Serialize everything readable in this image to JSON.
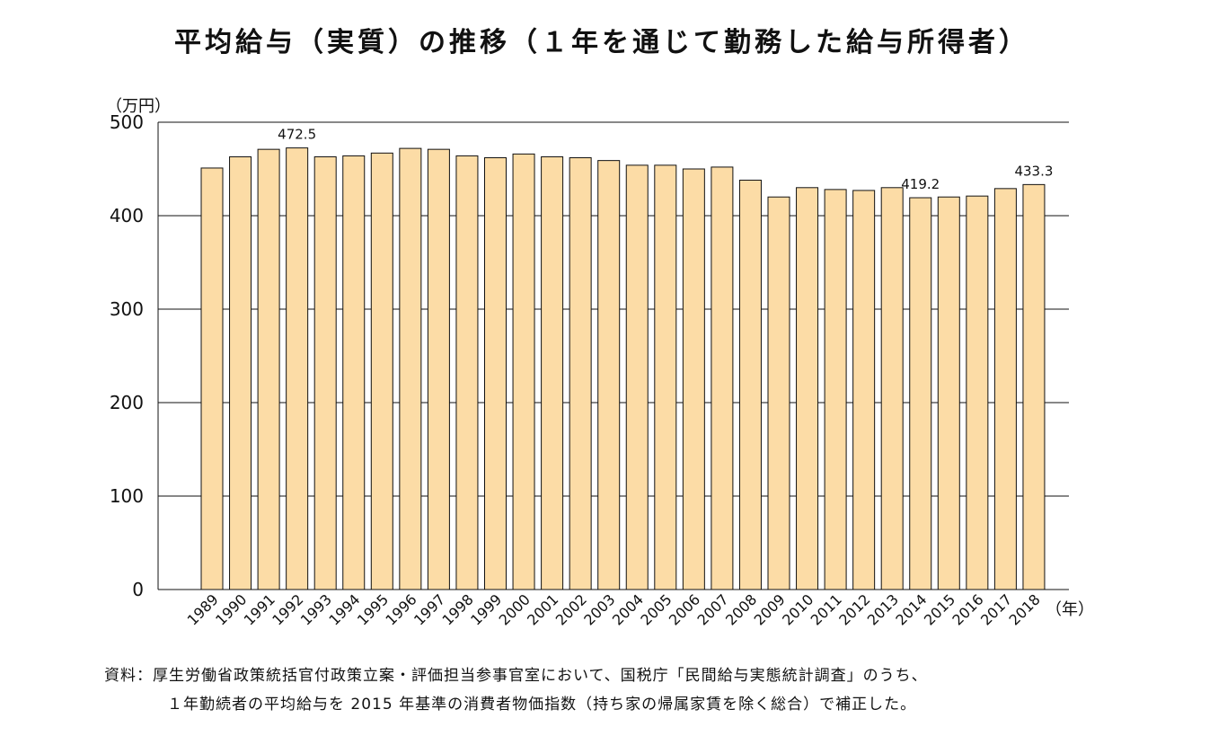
{
  "title": "平均給与（実質）の推移（１年を通じて勤務した給与所得者）",
  "unit_label": "（万円）",
  "x_unit_label": "（年）",
  "source_line1": "資料：厚生労働省政策統括官付政策立案・評価担当参事官室において、国税庁「民間給与実態統計調査」のうち、",
  "source_line2": "１年勤続者の平均給与を 2015 年基準の消費者物価指数（持ち家の帰属家賃を除く総合）で補正した。",
  "colors": {
    "bar_fill": "#fcdca6",
    "bar_stroke": "#111111",
    "grid": "#111111"
  },
  "chart_data": {
    "type": "bar",
    "title": "平均給与（実質）の推移（１年を通じて勤務した給与所得者）",
    "xlabel": "（年）",
    "ylabel": "（万円）",
    "ylim": [
      0,
      500
    ],
    "yticks": [
      0,
      100,
      200,
      300,
      400,
      500
    ],
    "grid": true,
    "categories": [
      "1989",
      "1990",
      "1991",
      "1992",
      "1993",
      "1994",
      "1995",
      "1996",
      "1997",
      "1998",
      "1999",
      "2000",
      "2001",
      "2002",
      "2003",
      "2004",
      "2005",
      "2006",
      "2007",
      "2008",
      "2009",
      "2010",
      "2011",
      "2012",
      "2013",
      "2014",
      "2015",
      "2016",
      "2017",
      "2018"
    ],
    "values": [
      451,
      463,
      471,
      472.5,
      463,
      464,
      467,
      472,
      471,
      464,
      462,
      466,
      463,
      462,
      459,
      454,
      454,
      450,
      452,
      438,
      420,
      430,
      428,
      427,
      430,
      419.2,
      420,
      421,
      429,
      433.3
    ],
    "data_labels": [
      {
        "category": "1992",
        "text": "472.5"
      },
      {
        "category": "2014",
        "text": "419.2"
      },
      {
        "category": "2018",
        "text": "433.3"
      }
    ]
  }
}
